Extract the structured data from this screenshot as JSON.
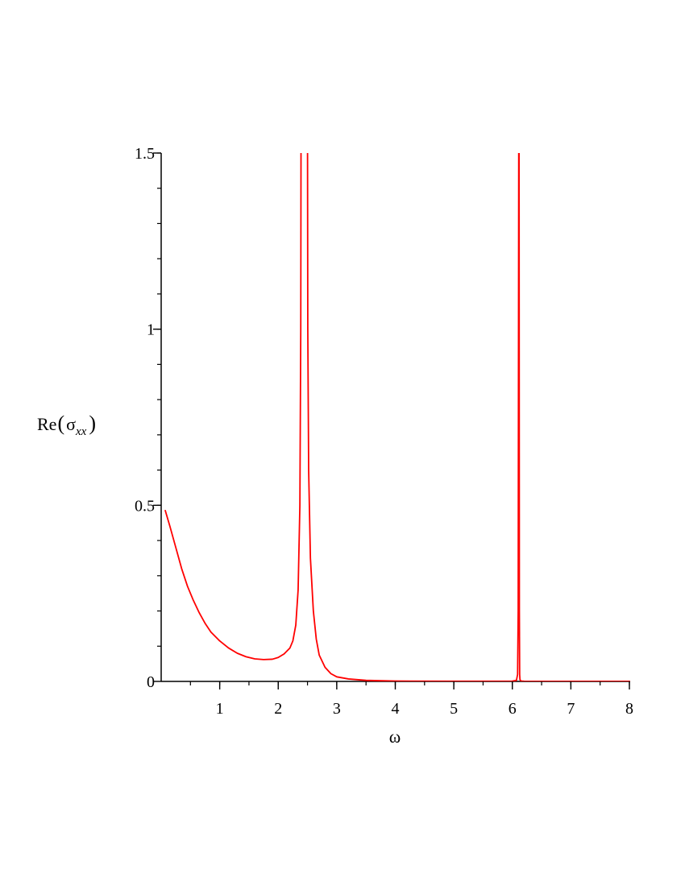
{
  "chart_data": {
    "type": "line",
    "title": "",
    "xlabel": "ω",
    "ylabel": {
      "prefix": "Re",
      "symbol": "σ",
      "subscript": "xx"
    },
    "xlim": [
      0,
      8
    ],
    "ylim": [
      0,
      1.5
    ],
    "x_ticks": [
      {
        "value": 1,
        "label": "1"
      },
      {
        "value": 2,
        "label": "2"
      },
      {
        "value": 3,
        "label": "3"
      },
      {
        "value": 4,
        "label": "4"
      },
      {
        "value": 5,
        "label": "5"
      },
      {
        "value": 6,
        "label": "6"
      },
      {
        "value": 7,
        "label": "7"
      },
      {
        "value": 8,
        "label": "8"
      }
    ],
    "x_minor_step": 0.5,
    "y_ticks": [
      {
        "value": 0,
        "label": "0"
      },
      {
        "value": 0.5,
        "label": "0.5"
      },
      {
        "value": 1,
        "label": "1"
      },
      {
        "value": 1.5,
        "label": "1.5"
      }
    ],
    "y_minor_step": 0.1,
    "grid": false,
    "legend": "none",
    "series": [
      {
        "color": "#ff0000",
        "x": [
          0.07,
          0.15,
          0.25,
          0.35,
          0.45,
          0.55,
          0.65,
          0.75,
          0.85,
          1.0,
          1.15,
          1.3,
          1.45,
          1.6,
          1.75,
          1.9,
          2.0,
          2.1,
          2.2,
          2.25,
          2.3,
          2.34,
          2.37,
          2.385,
          2.39,
          2.5,
          2.505,
          2.52,
          2.55,
          2.6,
          2.65,
          2.7,
          2.8,
          2.9,
          3.0,
          3.2,
          3.5,
          4.0,
          5.0,
          6.0,
          6.07,
          6.09,
          6.1,
          6.11,
          6.115,
          6.12,
          6.125,
          6.13,
          6.15,
          6.2,
          7.0,
          8.0
        ],
        "y": [
          0.485,
          0.44,
          0.38,
          0.32,
          0.27,
          0.23,
          0.195,
          0.165,
          0.14,
          0.115,
          0.095,
          0.08,
          0.07,
          0.064,
          0.062,
          0.063,
          0.068,
          0.078,
          0.095,
          0.115,
          0.16,
          0.26,
          0.5,
          1.0,
          1.6,
          1.6,
          1.0,
          0.6,
          0.35,
          0.2,
          0.12,
          0.075,
          0.04,
          0.022,
          0.013,
          0.007,
          0.003,
          0.001,
          0.0005,
          0.0008,
          0.003,
          0.02,
          0.2,
          1.6,
          1.6,
          0.2,
          0.02,
          0.005,
          0.001,
          0.0005,
          0.0002,
          0.0001
        ]
      }
    ]
  }
}
